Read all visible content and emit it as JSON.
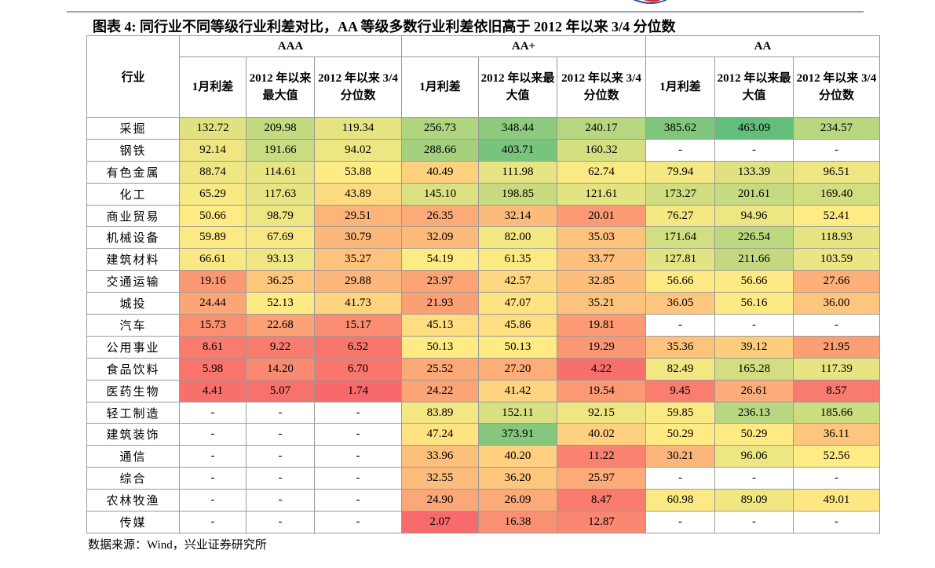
{
  "title": "图表 4: 同行业不同等级行业利差对比，AA 等级多数行业利差依旧高于 2012 年以来 3/4 分位数",
  "table": {
    "industry_header": "行业",
    "groups": [
      {
        "name": "AAA",
        "columns": [
          "1月利差",
          "2012 年以来最大值",
          "2012 年以来 3/4 分位数"
        ]
      },
      {
        "name": "AA+",
        "columns": [
          "1月利差",
          "2012 年以来最大值",
          "2012 年以来 3/4 分位数"
        ]
      },
      {
        "name": "AA",
        "columns": [
          "1月利差",
          "2012 年以来最大值",
          "2012 年以来 3/4 分位数"
        ]
      }
    ],
    "rows": [
      {
        "industry": "采掘",
        "values": [
          "132.72",
          "209.98",
          "119.34",
          "256.73",
          "348.44",
          "240.17",
          "385.62",
          "463.09",
          "234.57"
        ]
      },
      {
        "industry": "钢铁",
        "values": [
          "92.14",
          "191.66",
          "94.02",
          "288.66",
          "403.71",
          "160.32",
          "-",
          "-",
          "-"
        ]
      },
      {
        "industry": "有色金属",
        "values": [
          "88.74",
          "114.61",
          "53.88",
          "40.49",
          "111.98",
          "62.74",
          "79.94",
          "133.39",
          "96.51"
        ]
      },
      {
        "industry": "化工",
        "values": [
          "65.29",
          "117.63",
          "43.89",
          "145.10",
          "198.85",
          "121.61",
          "173.27",
          "201.61",
          "169.40"
        ]
      },
      {
        "industry": "商业贸易",
        "values": [
          "50.66",
          "98.79",
          "29.51",
          "26.35",
          "32.14",
          "20.01",
          "76.27",
          "94.96",
          "52.41"
        ]
      },
      {
        "industry": "机械设备",
        "values": [
          "59.89",
          "67.69",
          "30.79",
          "32.09",
          "82.00",
          "35.03",
          "171.64",
          "226.54",
          "118.93"
        ]
      },
      {
        "industry": "建筑材料",
        "values": [
          "66.61",
          "93.13",
          "35.27",
          "54.19",
          "61.35",
          "33.77",
          "127.81",
          "211.66",
          "103.59"
        ]
      },
      {
        "industry": "交通运输",
        "values": [
          "19.16",
          "36.25",
          "29.88",
          "23.97",
          "42.57",
          "32.85",
          "56.66",
          "56.66",
          "27.66"
        ]
      },
      {
        "industry": "城投",
        "values": [
          "24.44",
          "52.13",
          "41.73",
          "21.93",
          "47.07",
          "35.21",
          "36.05",
          "56.16",
          "36.00"
        ]
      },
      {
        "industry": "汽车",
        "values": [
          "15.73",
          "22.68",
          "15.17",
          "45.13",
          "45.86",
          "19.81",
          "-",
          "-",
          "-"
        ]
      },
      {
        "industry": "公用事业",
        "values": [
          "8.61",
          "9.22",
          "6.52",
          "50.13",
          "50.13",
          "19.29",
          "35.36",
          "39.12",
          "21.95"
        ]
      },
      {
        "industry": "食品饮料",
        "values": [
          "5.98",
          "14.20",
          "6.70",
          "25.52",
          "27.20",
          "4.22",
          "82.49",
          "165.28",
          "117.39"
        ]
      },
      {
        "industry": "医药生物",
        "values": [
          "4.41",
          "5.07",
          "1.74",
          "24.22",
          "41.42",
          "19.54",
          "9.45",
          "26.61",
          "8.57"
        ]
      },
      {
        "industry": "轻工制造",
        "values": [
          "-",
          "-",
          "-",
          "83.89",
          "152.11",
          "92.15",
          "59.85",
          "236.13",
          "185.66"
        ]
      },
      {
        "industry": "建筑装饰",
        "values": [
          "-",
          "-",
          "-",
          "47.24",
          "373.91",
          "40.02",
          "50.29",
          "50.29",
          "36.11"
        ]
      },
      {
        "industry": "通信",
        "values": [
          "-",
          "-",
          "-",
          "33.96",
          "40.20",
          "11.22",
          "30.21",
          "96.06",
          "52.56"
        ]
      },
      {
        "industry": "综合",
        "values": [
          "-",
          "-",
          "-",
          "32.55",
          "36.20",
          "25.97",
          "-",
          "-",
          "-"
        ]
      },
      {
        "industry": "农林牧渔",
        "values": [
          "-",
          "-",
          "-",
          "24.90",
          "26.09",
          "8.47",
          "60.98",
          "89.09",
          "49.01"
        ]
      },
      {
        "industry": "传媒",
        "values": [
          "-",
          "-",
          "-",
          "2.07",
          "16.38",
          "12.87",
          "-",
          "-",
          "-"
        ]
      }
    ]
  },
  "source": "数据来源：Wind，兴业证券研究所"
}
